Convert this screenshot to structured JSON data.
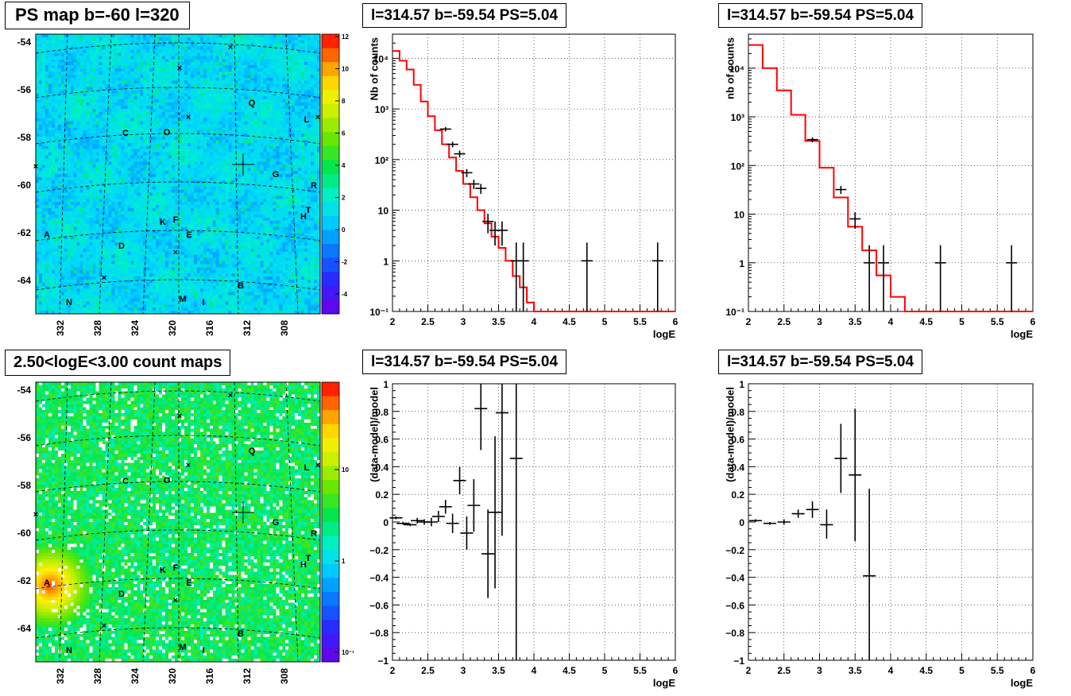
{
  "titles": {
    "map1": "PS map b=-60 l=320",
    "map2": "2.50<logE<3.00 count maps",
    "spec1": "l=314.57 b=-59.54 PS=5.04",
    "spec2": "l=314.57 b=-59.54 PS=5.04",
    "res1": "l=314.57 b=-59.54 PS=5.04",
    "res2": "l=314.57 b=-59.54 PS=5.04"
  },
  "maps": {
    "ylabels": [
      "-54",
      "-56",
      "-58",
      "-60",
      "-62",
      "-64"
    ],
    "xlabels": [
      "332",
      "328",
      "324",
      "320",
      "316",
      "312",
      "308"
    ],
    "sources": [
      "A",
      "B",
      "C",
      "D",
      "E",
      "F",
      "G",
      "H",
      "K",
      "L",
      "M",
      "N",
      "O",
      "Q",
      "R",
      "T",
      "I"
    ],
    "map1_colorbar": {
      "min": -5,
      "max": 12,
      "ticks": [
        "12",
        "10",
        "8",
        "6",
        "4",
        "2",
        "0",
        "-2",
        "-4"
      ]
    },
    "map2_colorbar": {
      "scale": "log",
      "ticks": [
        "10",
        "1",
        "10⁻¹"
      ]
    }
  },
  "chart_data": [
    {
      "type": "line",
      "name_ref": "spec1",
      "xlabel": "logE",
      "ylabel": "Nb of counts",
      "xlim": [
        2,
        6
      ],
      "ylim": [
        0.1,
        30000
      ],
      "yscale": "log",
      "xticks": [
        "2",
        "2.5",
        "3",
        "3.5",
        "4",
        "4.5",
        "5",
        "5.5",
        "6"
      ],
      "yticks": [
        "10⁻¹",
        "1",
        "10",
        "10²",
        "10³",
        "10⁴"
      ],
      "grid": true,
      "model_color": "#ff0000",
      "model_step": {
        "edges": [
          2.0,
          2.1,
          2.2,
          2.3,
          2.4,
          2.5,
          2.6,
          2.7,
          2.8,
          2.9,
          3.0,
          3.1,
          3.2,
          3.3,
          3.4,
          3.5,
          3.6,
          3.7,
          3.8,
          3.9,
          4.0,
          4.1,
          4.2,
          4.3,
          4.4,
          4.5,
          4.6,
          4.7,
          4.8,
          4.9,
          5.0,
          5.1,
          5.2,
          5.3,
          5.4,
          5.5,
          5.6,
          5.7,
          5.8,
          5.9,
          6.0
        ],
        "values": [
          14000,
          9000,
          6000,
          3000,
          1400,
          720,
          380,
          200,
          110,
          60,
          33,
          18,
          10,
          5.5,
          3,
          1.8,
          1,
          0.5,
          0.3,
          0.15,
          0.1,
          0.1,
          0.1,
          0.1,
          0.1,
          0.1,
          0.1,
          0.1,
          0.1,
          0.1,
          0.1,
          0.1,
          0.1,
          0.1,
          0.1,
          0.1,
          0.1,
          0.1,
          0.1,
          0.1
        ]
      },
      "points": [
        {
          "x": 2.75,
          "y": 400,
          "ylo": 360,
          "yhi": 440
        },
        {
          "x": 2.85,
          "y": 200,
          "ylo": 175,
          "yhi": 225
        },
        {
          "x": 2.95,
          "y": 130,
          "ylo": 110,
          "yhi": 150
        },
        {
          "x": 3.05,
          "y": 55,
          "ylo": 45,
          "yhi": 65
        },
        {
          "x": 3.15,
          "y": 33,
          "ylo": 26,
          "yhi": 40
        },
        {
          "x": 3.25,
          "y": 27,
          "ylo": 21,
          "yhi": 33
        },
        {
          "x": 3.35,
          "y": 6,
          "ylo": 3.5,
          "yhi": 8.5
        },
        {
          "x": 3.45,
          "y": 4,
          "ylo": 2,
          "yhi": 6
        },
        {
          "x": 3.55,
          "y": 4,
          "ylo": 2,
          "yhi": 6
        },
        {
          "x": 3.75,
          "y": 1,
          "ylo": 0.1,
          "yhi": 2.3
        },
        {
          "x": 3.85,
          "y": 1,
          "ylo": 0.1,
          "yhi": 2.3
        },
        {
          "x": 4.75,
          "y": 1,
          "ylo": 0.1,
          "yhi": 2.3
        },
        {
          "x": 5.75,
          "y": 1,
          "ylo": 0.1,
          "yhi": 2.3
        }
      ]
    },
    {
      "type": "line",
      "name_ref": "spec2",
      "xlabel": "logE",
      "ylabel": "nb of counts",
      "xlim": [
        2,
        6
      ],
      "ylim": [
        0.1,
        50000
      ],
      "yscale": "log",
      "xticks": [
        "2",
        "2.5",
        "3",
        "3.5",
        "4",
        "4.5",
        "5",
        "5.5",
        "6"
      ],
      "yticks": [
        "10⁻¹",
        "1",
        "10",
        "10²",
        "10³",
        "10⁴"
      ],
      "grid": true,
      "model_color": "#ff0000",
      "model_step": {
        "edges": [
          2.0,
          2.2,
          2.4,
          2.6,
          2.8,
          3.0,
          3.2,
          3.4,
          3.6,
          3.8,
          4.0,
          4.2,
          4.4,
          4.6,
          4.8,
          5.0,
          5.2,
          5.4,
          5.6,
          5.8,
          6.0
        ],
        "values": [
          30000,
          10000,
          3500,
          1100,
          320,
          90,
          22,
          5.5,
          1.8,
          0.55,
          0.2,
          0.1,
          0.1,
          0.1,
          0.1,
          0.1,
          0.1,
          0.1,
          0.1,
          0.1
        ]
      },
      "points": [
        {
          "x": 2.9,
          "y": 340,
          "ylo": 300,
          "yhi": 380
        },
        {
          "x": 3.3,
          "y": 32,
          "ylo": 26,
          "yhi": 38
        },
        {
          "x": 3.5,
          "y": 8,
          "ylo": 5,
          "yhi": 11
        },
        {
          "x": 3.7,
          "y": 1,
          "ylo": 0.1,
          "yhi": 2.3
        },
        {
          "x": 3.9,
          "y": 1,
          "ylo": 0.1,
          "yhi": 2.3
        },
        {
          "x": 4.7,
          "y": 1,
          "ylo": 0.1,
          "yhi": 2.3
        },
        {
          "x": 5.7,
          "y": 1,
          "ylo": 0.1,
          "yhi": 2.3
        }
      ]
    },
    {
      "type": "scatter",
      "name_ref": "res1",
      "xlabel": "logE",
      "ylabel": "(data-model)/model",
      "xlim": [
        2,
        6
      ],
      "ylim": [
        -1,
        1
      ],
      "xticks": [
        "2",
        "2.5",
        "3",
        "3.5",
        "4",
        "4.5",
        "5",
        "5.5",
        "6"
      ],
      "yticks": [
        "−1",
        "−0.8",
        "−0.6",
        "−0.4",
        "−0.2",
        "0",
        "0.2",
        "0.4",
        "0.6",
        "0.8",
        "1"
      ],
      "grid": true,
      "points": [
        {
          "x": 2.05,
          "y": 0.03,
          "ylo": 0.02,
          "yhi": 0.04
        },
        {
          "x": 2.15,
          "y": -0.01,
          "ylo": -0.02,
          "yhi": 0.0
        },
        {
          "x": 2.25,
          "y": -0.02,
          "ylo": -0.03,
          "yhi": -0.01
        },
        {
          "x": 2.35,
          "y": 0.01,
          "ylo": -0.01,
          "yhi": 0.03
        },
        {
          "x": 2.45,
          "y": 0.0,
          "ylo": -0.02,
          "yhi": 0.02
        },
        {
          "x": 2.55,
          "y": 0.0,
          "ylo": -0.03,
          "yhi": 0.03
        },
        {
          "x": 2.65,
          "y": 0.04,
          "ylo": 0.0,
          "yhi": 0.08
        },
        {
          "x": 2.75,
          "y": 0.11,
          "ylo": 0.06,
          "yhi": 0.16
        },
        {
          "x": 2.85,
          "y": -0.01,
          "ylo": -0.08,
          "yhi": 0.06
        },
        {
          "x": 2.95,
          "y": 0.3,
          "ylo": 0.2,
          "yhi": 0.4
        },
        {
          "x": 3.05,
          "y": -0.08,
          "ylo": -0.2,
          "yhi": 0.04
        },
        {
          "x": 3.15,
          "y": 0.12,
          "ylo": -0.07,
          "yhi": 0.31
        },
        {
          "x": 3.25,
          "y": 0.82,
          "ylo": 0.52,
          "yhi": 1.0
        },
        {
          "x": 3.35,
          "y": -0.23,
          "ylo": -0.55,
          "yhi": 0.09
        },
        {
          "x": 3.45,
          "y": 0.07,
          "ylo": -0.48,
          "yhi": 0.62
        },
        {
          "x": 3.55,
          "y": 0.79,
          "ylo": -0.1,
          "yhi": 1.0
        },
        {
          "x": 3.75,
          "y": 0.46,
          "ylo": -1.0,
          "yhi": 1.0
        }
      ]
    },
    {
      "type": "scatter",
      "name_ref": "res2",
      "xlabel": "logE",
      "ylabel": "(data-model)/model",
      "xlim": [
        2,
        6
      ],
      "ylim": [
        -1,
        1
      ],
      "xticks": [
        "2",
        "2.5",
        "3",
        "3.5",
        "4",
        "4.5",
        "5",
        "5.5",
        "6"
      ],
      "yticks": [
        "−1",
        "−0.8",
        "−0.6",
        "−0.4",
        "−0.2",
        "0",
        "0.2",
        "0.4",
        "0.6",
        "0.8",
        "1"
      ],
      "grid": true,
      "points": [
        {
          "x": 2.1,
          "y": 0.01,
          "ylo": 0.0,
          "yhi": 0.02
        },
        {
          "x": 2.3,
          "y": -0.01,
          "ylo": -0.02,
          "yhi": 0.0
        },
        {
          "x": 2.5,
          "y": 0.0,
          "ylo": -0.02,
          "yhi": 0.02
        },
        {
          "x": 2.7,
          "y": 0.06,
          "ylo": 0.03,
          "yhi": 0.09
        },
        {
          "x": 2.9,
          "y": 0.09,
          "ylo": 0.03,
          "yhi": 0.15
        },
        {
          "x": 3.1,
          "y": -0.02,
          "ylo": -0.12,
          "yhi": 0.09
        },
        {
          "x": 3.3,
          "y": 0.46,
          "ylo": 0.21,
          "yhi": 0.71
        },
        {
          "x": 3.5,
          "y": 0.34,
          "ylo": -0.14,
          "yhi": 0.82
        },
        {
          "x": 3.7,
          "y": -0.39,
          "ylo": -1.0,
          "yhi": 0.24
        }
      ]
    }
  ]
}
